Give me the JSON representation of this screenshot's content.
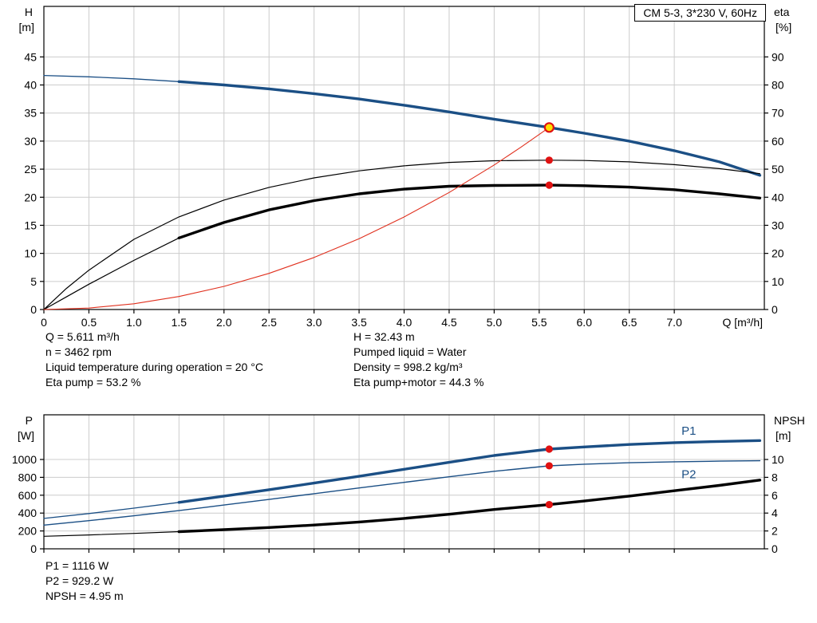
{
  "title_box": "CM 5-3, 3*230 V, 60Hz",
  "colors": {
    "curve_blue": "#1b4f85",
    "curve_black": "#000000",
    "system_curve_red": "#e0301e",
    "duty_point_fill": "#ffdf00",
    "duty_point_ring": "#e01212",
    "dot_red": "#e01212",
    "grid": "#cccccc",
    "axis": "#000000"
  },
  "info": {
    "top_left": [
      "Q = 5.611 m³/h",
      "n = 3462 rpm",
      "Liquid temperature during operation = 20 °C",
      "Eta pump = 53.2 %"
    ],
    "top_right": [
      "H = 32.43 m",
      "Pumped liquid = Water",
      "Density = 998.2 kg/m³",
      "Eta pump+motor = 44.3 %"
    ],
    "bottom": [
      "P1 = 1116 W",
      "P2 = 929.2 W",
      "NPSH = 4.95 m"
    ]
  },
  "chart_data": [
    {
      "type": "line",
      "title": "CM 5-3, 3*230 V, 60Hz",
      "grid": true,
      "x_axis": {
        "label": "Q [m³/h]",
        "min": 0,
        "max": 8,
        "ticks": [
          0,
          0.5,
          1,
          1.5,
          2,
          2.5,
          3,
          3.5,
          4,
          4.5,
          5,
          5.5,
          6,
          6.5,
          7
        ],
        "tick_labels": [
          "0",
          "0.5",
          "1.0",
          "1.5",
          "2.0",
          "2.5",
          "3.0",
          "3.5",
          "4.0",
          "4.5",
          "5.0",
          "5.5",
          "6.0",
          "6.5",
          "7.0"
        ]
      },
      "left_axis": {
        "label": "H",
        "unit": "[m]",
        "min": 0,
        "max": 54,
        "ticks": [
          0,
          5,
          10,
          15,
          20,
          25,
          30,
          35,
          40,
          45
        ],
        "tick_labels": [
          "0",
          "5",
          "10",
          "15",
          "20",
          "25",
          "30",
          "35",
          "40",
          "45"
        ]
      },
      "right_axis": {
        "label": "eta",
        "unit": "[%]",
        "min": 0,
        "max": 108,
        "ticks": [
          0,
          10,
          20,
          30,
          40,
          50,
          60,
          70,
          80,
          90
        ],
        "tick_labels": [
          "0",
          "10",
          "20",
          "30",
          "40",
          "50",
          "60",
          "70",
          "80",
          "90"
        ]
      },
      "series": [
        {
          "name": "H",
          "axis": "left",
          "color": "#1b4f85",
          "width": 1.3,
          "thick_width": 3.4,
          "thick_from": 1.5,
          "points": [
            [
              0,
              41.7
            ],
            [
              0.5,
              41.45
            ],
            [
              1,
              41.1
            ],
            [
              1.5,
              40.6
            ],
            [
              2,
              40.0
            ],
            [
              2.5,
              39.3
            ],
            [
              3,
              38.45
            ],
            [
              3.5,
              37.5
            ],
            [
              4,
              36.4
            ],
            [
              4.5,
              35.2
            ],
            [
              5,
              33.9
            ],
            [
              5.611,
              32.43
            ],
            [
              6,
              31.4
            ],
            [
              6.5,
              30.0
            ],
            [
              7,
              28.3
            ],
            [
              7.5,
              26.3
            ],
            [
              7.95,
              23.9
            ]
          ]
        },
        {
          "name": "Eta pump",
          "axis": "right",
          "color": "#000000",
          "width": 1.2,
          "points": [
            [
              0,
              0
            ],
            [
              0.25,
              7.5
            ],
            [
              0.5,
              14
            ],
            [
              1,
              25
            ],
            [
              1.5,
              33
            ],
            [
              2,
              39
            ],
            [
              2.5,
              43.5
            ],
            [
              3,
              46.9
            ],
            [
              3.5,
              49.4
            ],
            [
              4,
              51.2
            ],
            [
              4.5,
              52.4
            ],
            [
              5,
              53.0
            ],
            [
              5.611,
              53.2
            ],
            [
              6,
              53.1
            ],
            [
              6.5,
              52.6
            ],
            [
              7,
              51.6
            ],
            [
              7.5,
              50.2
            ],
            [
              7.95,
              48.4
            ]
          ]
        },
        {
          "name": "Eta pump+motor",
          "axis": "right",
          "color": "#000000",
          "width": 1.2,
          "thick_width": 3.4,
          "thick_from": 1.5,
          "points": [
            [
              0,
              0
            ],
            [
              0.25,
              4.5
            ],
            [
              0.5,
              9
            ],
            [
              1,
              17.5
            ],
            [
              1.5,
              25.5
            ],
            [
              2,
              31
            ],
            [
              2.5,
              35.5
            ],
            [
              3,
              38.8
            ],
            [
              3.5,
              41.2
            ],
            [
              4,
              42.9
            ],
            [
              4.5,
              43.9
            ],
            [
              5,
              44.2
            ],
            [
              5.611,
              44.3
            ],
            [
              6,
              44.1
            ],
            [
              6.5,
              43.6
            ],
            [
              7,
              42.7
            ],
            [
              7.5,
              41.2
            ],
            [
              7.95,
              39.7
            ]
          ]
        },
        {
          "name": "System curve",
          "axis": "left",
          "color": "#e0301e",
          "width": 1.1,
          "points": [
            [
              0,
              0
            ],
            [
              0.5,
              0.26
            ],
            [
              1,
              1.03
            ],
            [
              1.5,
              2.32
            ],
            [
              2,
              4.12
            ],
            [
              2.5,
              6.44
            ],
            [
              3,
              9.27
            ],
            [
              3.5,
              12.62
            ],
            [
              4,
              16.48
            ],
            [
              4.5,
              20.85
            ],
            [
              5,
              25.75
            ],
            [
              5.3,
              28.94
            ],
            [
              5.611,
              32.43
            ]
          ]
        }
      ],
      "markers": [
        {
          "name": "duty-point",
          "q": 5.611,
          "value": 32.43,
          "axis": "left",
          "style": "duty"
        },
        {
          "name": "eta-pump-dot",
          "q": 5.611,
          "value": 53.2,
          "axis": "right",
          "style": "dot"
        },
        {
          "name": "eta-total-dot",
          "q": 5.611,
          "value": 44.3,
          "axis": "right",
          "style": "dot"
        }
      ],
      "series_labels": []
    },
    {
      "type": "line",
      "title": "",
      "grid": true,
      "x_axis": {
        "label": "",
        "min": 0,
        "max": 8,
        "ticks": [
          0,
          0.5,
          1,
          1.5,
          2,
          2.5,
          3,
          3.5,
          4,
          4.5,
          5,
          5.5,
          6,
          6.5,
          7
        ],
        "tick_labels": []
      },
      "left_axis": {
        "label": "P",
        "unit": "[W]",
        "min": 0,
        "max": 1500,
        "ticks": [
          0,
          200,
          400,
          600,
          800,
          1000
        ],
        "tick_labels": [
          "0",
          "200",
          "400",
          "600",
          "800",
          "1000"
        ]
      },
      "right_axis": {
        "label": "NPSH",
        "unit": "[m]",
        "min": 0,
        "max": 15,
        "ticks": [
          0,
          2,
          4,
          6,
          8,
          10
        ],
        "tick_labels": [
          "0",
          "2",
          "4",
          "6",
          "8",
          "10"
        ]
      },
      "series": [
        {
          "name": "P1",
          "axis": "left",
          "color": "#1b4f85",
          "width": 1.3,
          "thick_width": 3.4,
          "thick_from": 1.5,
          "points": [
            [
              0,
              340
            ],
            [
              0.5,
              395
            ],
            [
              1,
              455
            ],
            [
              1.5,
              520
            ],
            [
              2,
              590
            ],
            [
              2.5,
              662
            ],
            [
              3,
              736
            ],
            [
              3.5,
              812
            ],
            [
              4,
              890
            ],
            [
              4.5,
              968
            ],
            [
              5,
              1045
            ],
            [
              5.611,
              1116
            ],
            [
              6,
              1140
            ],
            [
              6.5,
              1168
            ],
            [
              7,
              1188
            ],
            [
              7.5,
              1202
            ],
            [
              7.95,
              1212
            ]
          ]
        },
        {
          "name": "P2",
          "axis": "left",
          "color": "#1b4f85",
          "width": 1.4,
          "points": [
            [
              0,
              265
            ],
            [
              0.5,
              315
            ],
            [
              1,
              370
            ],
            [
              1.5,
              428
            ],
            [
              2,
              490
            ],
            [
              2.5,
              553
            ],
            [
              3,
              617
            ],
            [
              3.5,
              681
            ],
            [
              4,
              744
            ],
            [
              4.5,
              806
            ],
            [
              5,
              868
            ],
            [
              5.611,
              929
            ],
            [
              6,
              947
            ],
            [
              6.5,
              963
            ],
            [
              7,
              974
            ],
            [
              7.5,
              981
            ],
            [
              7.95,
              986
            ]
          ]
        },
        {
          "name": "NPSH",
          "axis": "right",
          "color": "#000000",
          "width": 1.2,
          "thick_width": 3.4,
          "thick_from": 1.5,
          "points": [
            [
              0,
              1.4
            ],
            [
              0.5,
              1.55
            ],
            [
              1,
              1.72
            ],
            [
              1.5,
              1.92
            ],
            [
              2,
              2.14
            ],
            [
              2.5,
              2.38
            ],
            [
              3,
              2.66
            ],
            [
              3.5,
              3.0
            ],
            [
              4,
              3.4
            ],
            [
              4.5,
              3.87
            ],
            [
              5,
              4.4
            ],
            [
              5.611,
              4.95
            ],
            [
              6,
              5.35
            ],
            [
              6.5,
              5.9
            ],
            [
              7,
              6.5
            ],
            [
              7.5,
              7.1
            ],
            [
              7.95,
              7.7
            ]
          ]
        }
      ],
      "markers": [
        {
          "name": "p1-dot",
          "q": 5.611,
          "value": 1116,
          "axis": "left",
          "style": "dot"
        },
        {
          "name": "p2-dot",
          "q": 5.611,
          "value": 929.2,
          "axis": "left",
          "style": "dot"
        },
        {
          "name": "npsh-dot",
          "q": 5.611,
          "value": 4.95,
          "axis": "right",
          "style": "dot"
        }
      ],
      "series_labels": [
        {
          "text": "P1",
          "q": 7.08,
          "value": 1275,
          "axis": "left",
          "color": "#1b4f85"
        },
        {
          "text": "P2",
          "q": 7.08,
          "value": 790,
          "axis": "left",
          "color": "#1b4f85"
        }
      ]
    }
  ]
}
